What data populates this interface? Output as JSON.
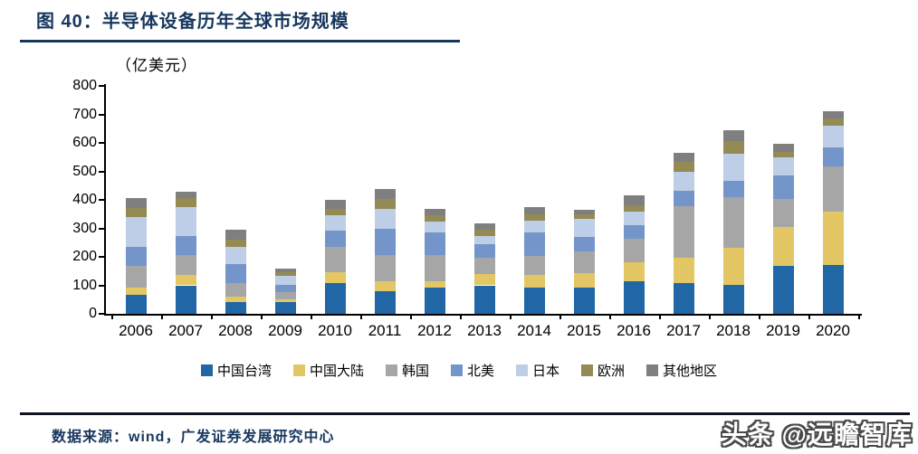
{
  "figure": {
    "title": "图  40：半导体设备历年全球市场规模",
    "source_note": "数据来源：wind，广发证券发展研究中心",
    "watermark": "头条 @远瞻智库"
  },
  "colors": {
    "title_navy": "#17375e",
    "underline_navy": "#17375e",
    "footer_divider": "#10141c",
    "axis": "#000000",
    "watermark_outline": "#4a4a4a"
  },
  "chart_data": {
    "type": "bar",
    "stacked": true,
    "title": "图 40：半导体设备历年全球市场规模",
    "ylabel": "（亿美元）",
    "xlabel": "",
    "ylim": [
      0,
      800
    ],
    "ytick_interval": 100,
    "yticks": [
      0,
      100,
      200,
      300,
      400,
      500,
      600,
      700,
      800
    ],
    "grid": false,
    "legend_position": "bottom",
    "categories": [
      "2006",
      "2007",
      "2008",
      "2009",
      "2010",
      "2011",
      "2012",
      "2013",
      "2014",
      "2015",
      "2016",
      "2017",
      "2018",
      "2019",
      "2020"
    ],
    "series": [
      {
        "name": "中国台湾",
        "color": "#2166a5",
        "values": [
          66,
          100,
          42,
          42,
          108,
          80,
          91,
          100,
          91,
          91,
          114,
          109,
          102,
          167,
          171
        ]
      },
      {
        "name": "中国大陆",
        "color": "#e3c764",
        "values": [
          27,
          36,
          19,
          8,
          38,
          34,
          24,
          39,
          44,
          53,
          67,
          88,
          131,
          139,
          187
        ]
      },
      {
        "name": "韩国",
        "color": "#a6a6a6",
        "values": [
          74,
          70,
          48,
          25,
          88,
          93,
          90,
          58,
          67,
          76,
          83,
          180,
          177,
          98,
          161
        ]
      },
      {
        "name": "北美",
        "color": "#7495c9",
        "values": [
          69,
          66,
          65,
          28,
          58,
          90,
          80,
          48,
          84,
          51,
          48,
          56,
          58,
          82,
          65
        ]
      },
      {
        "name": "日本",
        "color": "#bdcee6",
        "values": [
          104,
          104,
          62,
          30,
          55,
          72,
          38,
          29,
          40,
          63,
          48,
          65,
          95,
          64,
          76
        ]
      },
      {
        "name": "欧洲",
        "color": "#948a54",
        "values": [
          30,
          30,
          24,
          12,
          21,
          34,
          23,
          21,
          24,
          16,
          20,
          35,
          42,
          18,
          26
        ]
      },
      {
        "name": "其他地区",
        "color": "#7f7f7f",
        "values": [
          35,
          23,
          34,
          14,
          32,
          34,
          22,
          22,
          24,
          16,
          35,
          33,
          40,
          28,
          25
        ]
      }
    ],
    "totals": [
      405,
      429,
      294,
      159,
      400,
      437,
      368,
      317,
      374,
      366,
      415,
      566,
      645,
      596,
      711
    ]
  }
}
